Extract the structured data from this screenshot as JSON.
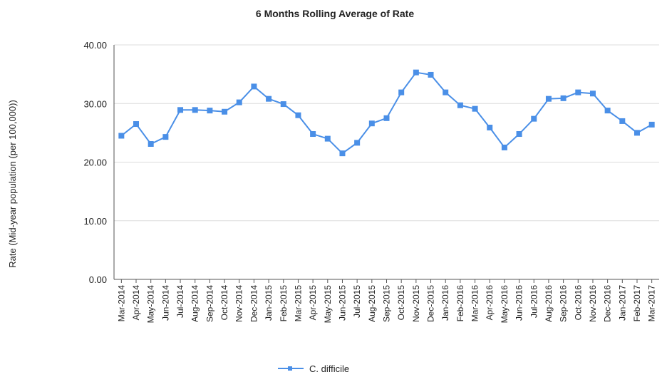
{
  "chart_data": {
    "type": "line",
    "title": "6 Months Rolling Average of Rate",
    "y_label": "Rate (Mid-year population (per 100,000))",
    "categories": [
      "Mar-2014",
      "Apr-2014",
      "May-2014",
      "Jun-2014",
      "Jul-2014",
      "Aug-2014",
      "Sep-2014",
      "Oct-2014",
      "Nov-2014",
      "Dec-2014",
      "Jan-2015",
      "Feb-2015",
      "Mar-2015",
      "Apr-2015",
      "May-2015",
      "Jun-2015",
      "Jul-2015",
      "Aug-2015",
      "Sep-2015",
      "Oct-2015",
      "Nov-2015",
      "Dec-2015",
      "Jan-2016",
      "Feb-2016",
      "Mar-2016",
      "Apr-2016",
      "May-2016",
      "Jun-2016",
      "Jul-2016",
      "Aug-2016",
      "Sep-2016",
      "Oct-2016",
      "Nov-2016",
      "Dec-2016",
      "Jan-2017",
      "Feb-2017",
      "Mar-2017"
    ],
    "series": [
      {
        "name": "C. difficile",
        "color": "#4a8fe7",
        "values": [
          24.5,
          26.5,
          23.1,
          24.3,
          28.9,
          28.9,
          28.8,
          28.6,
          30.2,
          32.9,
          30.8,
          29.9,
          28.0,
          24.8,
          24.0,
          21.5,
          23.3,
          26.6,
          27.5,
          31.9,
          35.3,
          34.9,
          31.9,
          29.7,
          29.1,
          25.9,
          22.5,
          24.8,
          27.4,
          30.8,
          30.9,
          31.9,
          31.7,
          28.8,
          27.0,
          25.0,
          26.4
        ]
      }
    ],
    "ylim": [
      0,
      40
    ],
    "yticks": [
      {
        "value": 0,
        "label": "0.00"
      },
      {
        "value": 10,
        "label": "10.00"
      },
      {
        "value": 20,
        "label": "20.00"
      },
      {
        "value": 30,
        "label": "30.00"
      },
      {
        "value": 40,
        "label": "40.00"
      }
    ],
    "grid": true,
    "legend": "bottom"
  }
}
